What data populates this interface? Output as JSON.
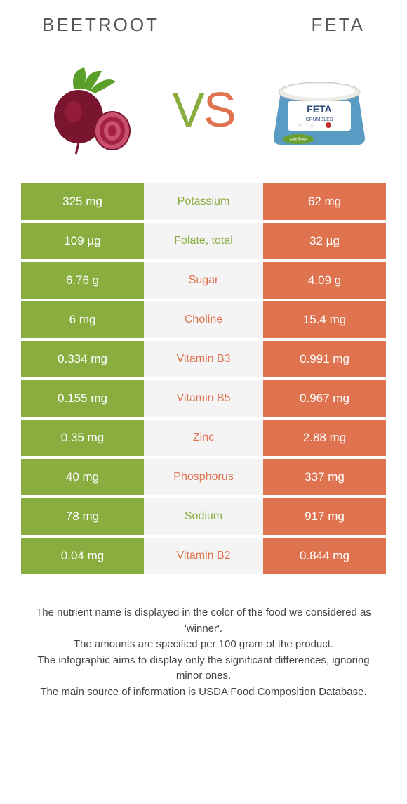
{
  "colors": {
    "green": "#8aad3f",
    "orange": "#e0734f",
    "mid_bg": "#f4f4f4",
    "text": "#555555",
    "beet_dark": "#7a1530",
    "beet_light": "#a42044",
    "beet_leaf": "#5aa028",
    "beet_inner": "#c9506f",
    "feta_container": "#5a9bc4",
    "feta_lid": "#ecebe6",
    "feta_label_bg": "#ffffff",
    "feta_label_text": "#2a4a7a",
    "feta_green": "#6aa030"
  },
  "header": {
    "left": "Beetroot",
    "right": "Feta"
  },
  "vs": {
    "v": "V",
    "s": "S"
  },
  "rows": [
    {
      "left": "325 mg",
      "mid": "Potassium",
      "right": "62 mg",
      "winner": "left"
    },
    {
      "left": "109 µg",
      "mid": "Folate, total",
      "right": "32 µg",
      "winner": "left"
    },
    {
      "left": "6.76 g",
      "mid": "Sugar",
      "right": "4.09 g",
      "winner": "right"
    },
    {
      "left": "6 mg",
      "mid": "Choline",
      "right": "15.4 mg",
      "winner": "right"
    },
    {
      "left": "0.334 mg",
      "mid": "Vitamin B3",
      "right": "0.991 mg",
      "winner": "right"
    },
    {
      "left": "0.155 mg",
      "mid": "Vitamin B5",
      "right": "0.967 mg",
      "winner": "right"
    },
    {
      "left": "0.35 mg",
      "mid": "Zinc",
      "right": "2.88 mg",
      "winner": "right"
    },
    {
      "left": "40 mg",
      "mid": "Phosphorus",
      "right": "337 mg",
      "winner": "right"
    },
    {
      "left": "78 mg",
      "mid": "Sodium",
      "right": "917 mg",
      "winner": "left"
    },
    {
      "left": "0.04 mg",
      "mid": "Vitamin B2",
      "right": "0.844 mg",
      "winner": "right"
    }
  ],
  "footer": {
    "line1": "The nutrient name is displayed in the color of the food we considered as 'winner'.",
    "line2": "The amounts are specified per 100 gram of the product.",
    "line3": "The infographic aims to display only the significant differences, ignoring minor ones.",
    "line4": "The main source of information is USDA Food Composition Database."
  }
}
